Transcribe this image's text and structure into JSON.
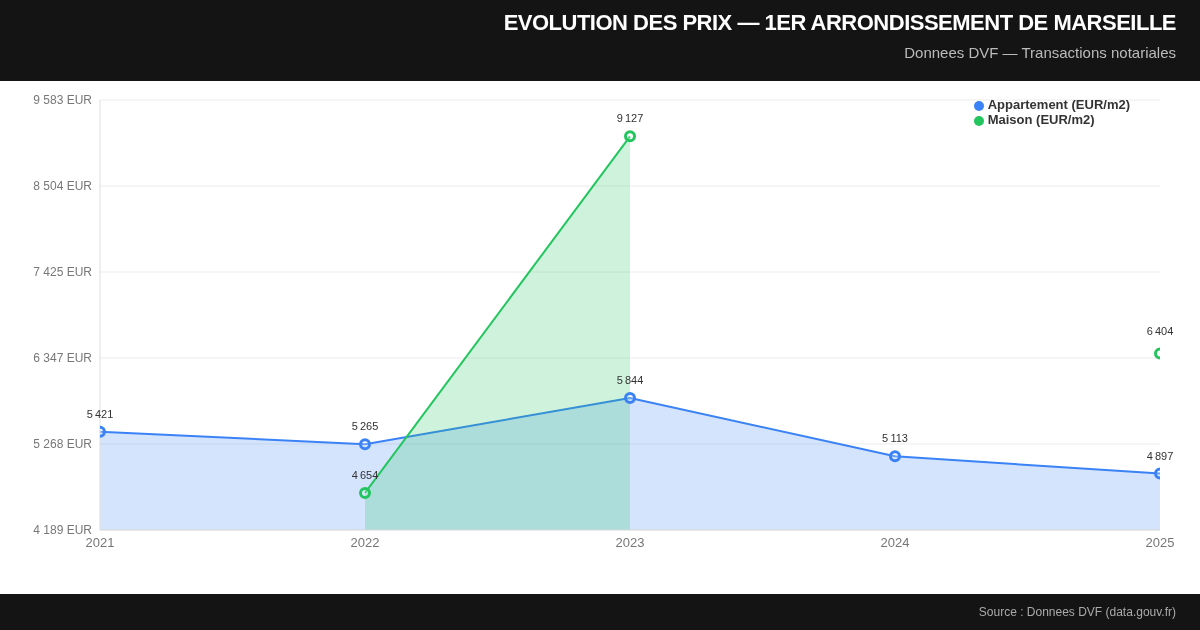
{
  "chart_data": {
    "type": "area",
    "title": "EVOLUTION DES PRIX — 1ER ARRONDISSEMENT DE MARSEILLE",
    "subtitle": "Donnees DVF — Transactions notariales",
    "annotations": [
      "Source : Donnees DVF (data.gouv.fr)"
    ],
    "categories": [
      "2021",
      "2022",
      "2023",
      "2024",
      "2025"
    ],
    "series": [
      {
        "name": "Appartement (EUR/m2)",
        "color": "#3b82f6",
        "values": [
          5421,
          5265,
          5844,
          5113,
          4897
        ]
      },
      {
        "name": "Maison (EUR/m2)",
        "color": "#22c55e",
        "values": [
          null,
          4654,
          9127,
          null,
          null
        ]
      },
      {
        "type": "scatter",
        "color": "#22c55e",
        "values": [
          null,
          null,
          null,
          null,
          6404
        ]
      }
    ],
    "ylim": [
      4189,
      9583
    ],
    "yticks": [
      {
        "value": 4189,
        "label": "4 189 EUR"
      },
      {
        "value": 5268,
        "label": "5 268 EUR"
      },
      {
        "value": 6347,
        "label": "6 347 EUR"
      },
      {
        "value": 7425,
        "label": "7 425 EUR"
      },
      {
        "value": 8504,
        "label": "8 504 EUR"
      },
      {
        "value": 9583,
        "label": "9 583 EUR"
      }
    ],
    "grid": "y",
    "legend": "top right",
    "marker": "circle",
    "data_labels": true
  }
}
